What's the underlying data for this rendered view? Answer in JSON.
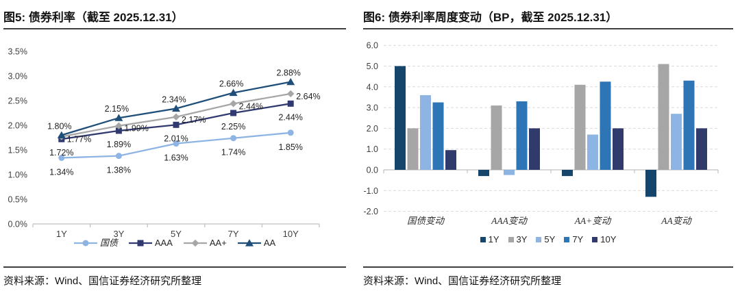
{
  "panels": {
    "left": {
      "title": "图5: 债券利率（截至 2025.12.31）",
      "source": "资料来源：Wind、国信证券经济研究所整理"
    },
    "right": {
      "title": "图6: 债券利率周度变动（BP，截至 2025.12.31）",
      "source": "资料来源：Wind、国信证券经济研究所整理"
    }
  },
  "chart_data": [
    {
      "type": "line",
      "title": "债券利率（截至 2025.12.31）",
      "categories": [
        "1Y",
        "3Y",
        "5Y",
        "7Y",
        "10Y"
      ],
      "ylim": [
        0,
        3.5
      ],
      "yticks": [
        "0.0%",
        "0.5%",
        "1.0%",
        "1.5%",
        "2.0%",
        "2.5%",
        "3.0%",
        "3.5%"
      ],
      "grid": false,
      "legend_position": "bottom",
      "series": [
        {
          "name": "国债",
          "marker": "circle",
          "color": "#8EB4E3",
          "values": [
            1.34,
            1.38,
            1.63,
            1.74,
            1.85
          ],
          "labels": [
            "1.34%",
            "1.38%",
            "1.63%",
            "1.74%",
            "1.85%"
          ]
        },
        {
          "name": "AAA",
          "marker": "square",
          "color": "#313A70",
          "values": [
            1.72,
            1.89,
            2.01,
            2.25,
            2.44
          ],
          "labels": [
            "1.72%",
            "1.89%",
            "2.01%",
            "2.25%",
            "2.44%"
          ]
        },
        {
          "name": "AA+",
          "marker": "diamond",
          "color": "#A6A6A6",
          "values": [
            1.77,
            1.99,
            2.17,
            2.44,
            2.64
          ],
          "labels": [
            "1.77%",
            "1.99%",
            "2.17%",
            "2.44%",
            "2.64%"
          ]
        },
        {
          "name": "AA",
          "marker": "triangle",
          "color": "#1F4E79",
          "values": [
            1.8,
            2.15,
            2.34,
            2.66,
            2.88
          ],
          "labels": [
            "1.80%",
            "2.15%",
            "2.34%",
            "2.66%",
            "2.88%"
          ]
        }
      ]
    },
    {
      "type": "bar",
      "title": "债券利率周度变动（BP，截至 2025.12.31）",
      "categories": [
        "国债变动",
        "AAA变动",
        "AA+变动",
        "AA变动"
      ],
      "ylim": [
        -2,
        6
      ],
      "yticks": [
        "6.0",
        "5.0",
        "4.0",
        "3.0",
        "2.0",
        "1.0",
        "0.0",
        "-1.0",
        "-2.0"
      ],
      "grid": "dashed-horizontal",
      "legend_position": "bottom",
      "series": [
        {
          "name": "1Y",
          "color": "#16456B",
          "values": [
            5.0,
            -0.3,
            -0.3,
            -1.3
          ]
        },
        {
          "name": "3Y",
          "color": "#A6A6A6",
          "values": [
            2.0,
            3.1,
            4.1,
            5.1
          ]
        },
        {
          "name": "5Y",
          "color": "#8EB4E3",
          "values": [
            3.6,
            -0.25,
            1.7,
            2.7
          ]
        },
        {
          "name": "7Y",
          "color": "#2E75B6",
          "values": [
            3.25,
            3.3,
            4.25,
            4.3
          ]
        },
        {
          "name": "10Y",
          "color": "#303A6B",
          "values": [
            0.95,
            2.0,
            2.0,
            2.0
          ]
        }
      ]
    }
  ]
}
